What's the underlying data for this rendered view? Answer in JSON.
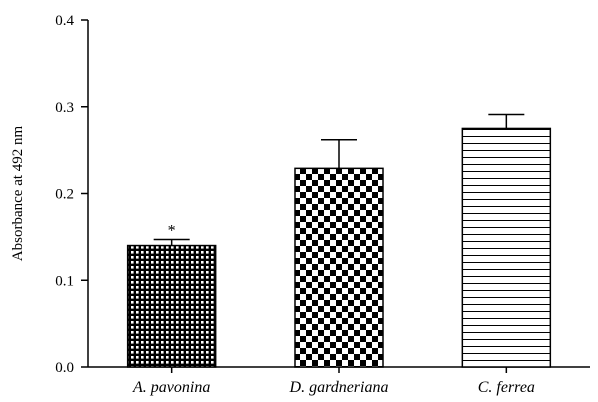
{
  "chart_data": {
    "type": "bar",
    "categories": [
      "A. pavonina",
      "D. gardneriana",
      "C. ferrea"
    ],
    "values": [
      0.14,
      0.229,
      0.275
    ],
    "errors": [
      0.007,
      0.033,
      0.016
    ],
    "patterns": [
      "dots",
      "checker",
      "horizontal-lines"
    ],
    "annotations": [
      "*",
      "",
      ""
    ],
    "xlabel": "",
    "ylabel": "Absorbance at 492 nm",
    "ylim": [
      0,
      0.4
    ],
    "yticks": [
      "0.0",
      "0.1",
      "0.2",
      "0.3",
      "0.4"
    ],
    "grid": false,
    "bar_color": "#000000",
    "background": "#ffffff"
  }
}
